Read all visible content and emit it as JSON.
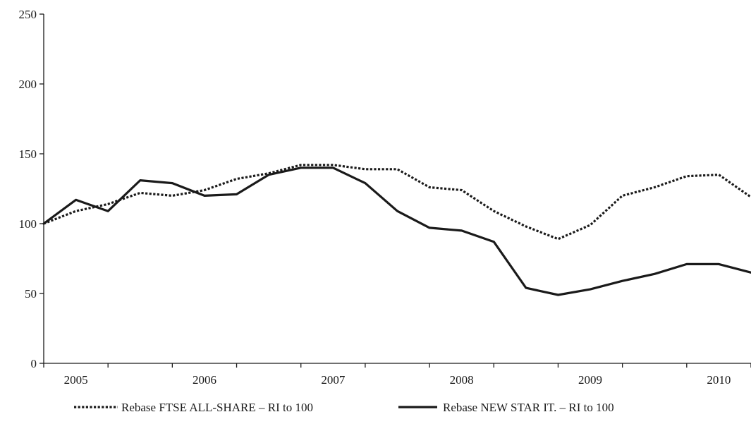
{
  "chart_data": {
    "type": "line",
    "title": "",
    "xlabel": "",
    "ylabel": "",
    "ylim": [
      0,
      250
    ],
    "yticks": [
      0,
      50,
      100,
      150,
      200,
      250
    ],
    "xlim": [
      2004.75,
      2010.25
    ],
    "xticks": [
      "2005",
      "2006",
      "2007",
      "2008",
      "2009",
      "2010"
    ],
    "grid": false,
    "legend_position": "bottom",
    "series": [
      {
        "name": "Rebase FTSE ALL-SHARE – RI to 100",
        "style": "dotted",
        "color": "#1a1a1a",
        "x": [
          2004.75,
          2005.0,
          2005.25,
          2005.5,
          2005.75,
          2006.0,
          2006.25,
          2006.5,
          2006.75,
          2007.0,
          2007.25,
          2007.5,
          2007.75,
          2008.0,
          2008.25,
          2008.5,
          2008.75,
          2009.0,
          2009.25,
          2009.5,
          2009.75,
          2010.0,
          2010.25
        ],
        "values": [
          100,
          109,
          114,
          122,
          120,
          124,
          132,
          136,
          142,
          142,
          139,
          139,
          126,
          124,
          109,
          98,
          89,
          99,
          120,
          126,
          134,
          135,
          119
        ]
      },
      {
        "name": "Rebase NEW STAR IT. – RI to 100",
        "style": "solid",
        "color": "#1a1a1a",
        "x": [
          2004.75,
          2005.0,
          2005.25,
          2005.5,
          2005.75,
          2006.0,
          2006.25,
          2006.5,
          2006.75,
          2007.0,
          2007.25,
          2007.5,
          2007.75,
          2008.0,
          2008.25,
          2008.5,
          2008.75,
          2009.0,
          2009.25,
          2009.5,
          2009.75,
          2010.0,
          2010.25
        ],
        "values": [
          100,
          117,
          109,
          131,
          129,
          120,
          121,
          135,
          140,
          140,
          129,
          109,
          97,
          95,
          87,
          54,
          49,
          53,
          59,
          64,
          71,
          71,
          65
        ]
      }
    ]
  }
}
